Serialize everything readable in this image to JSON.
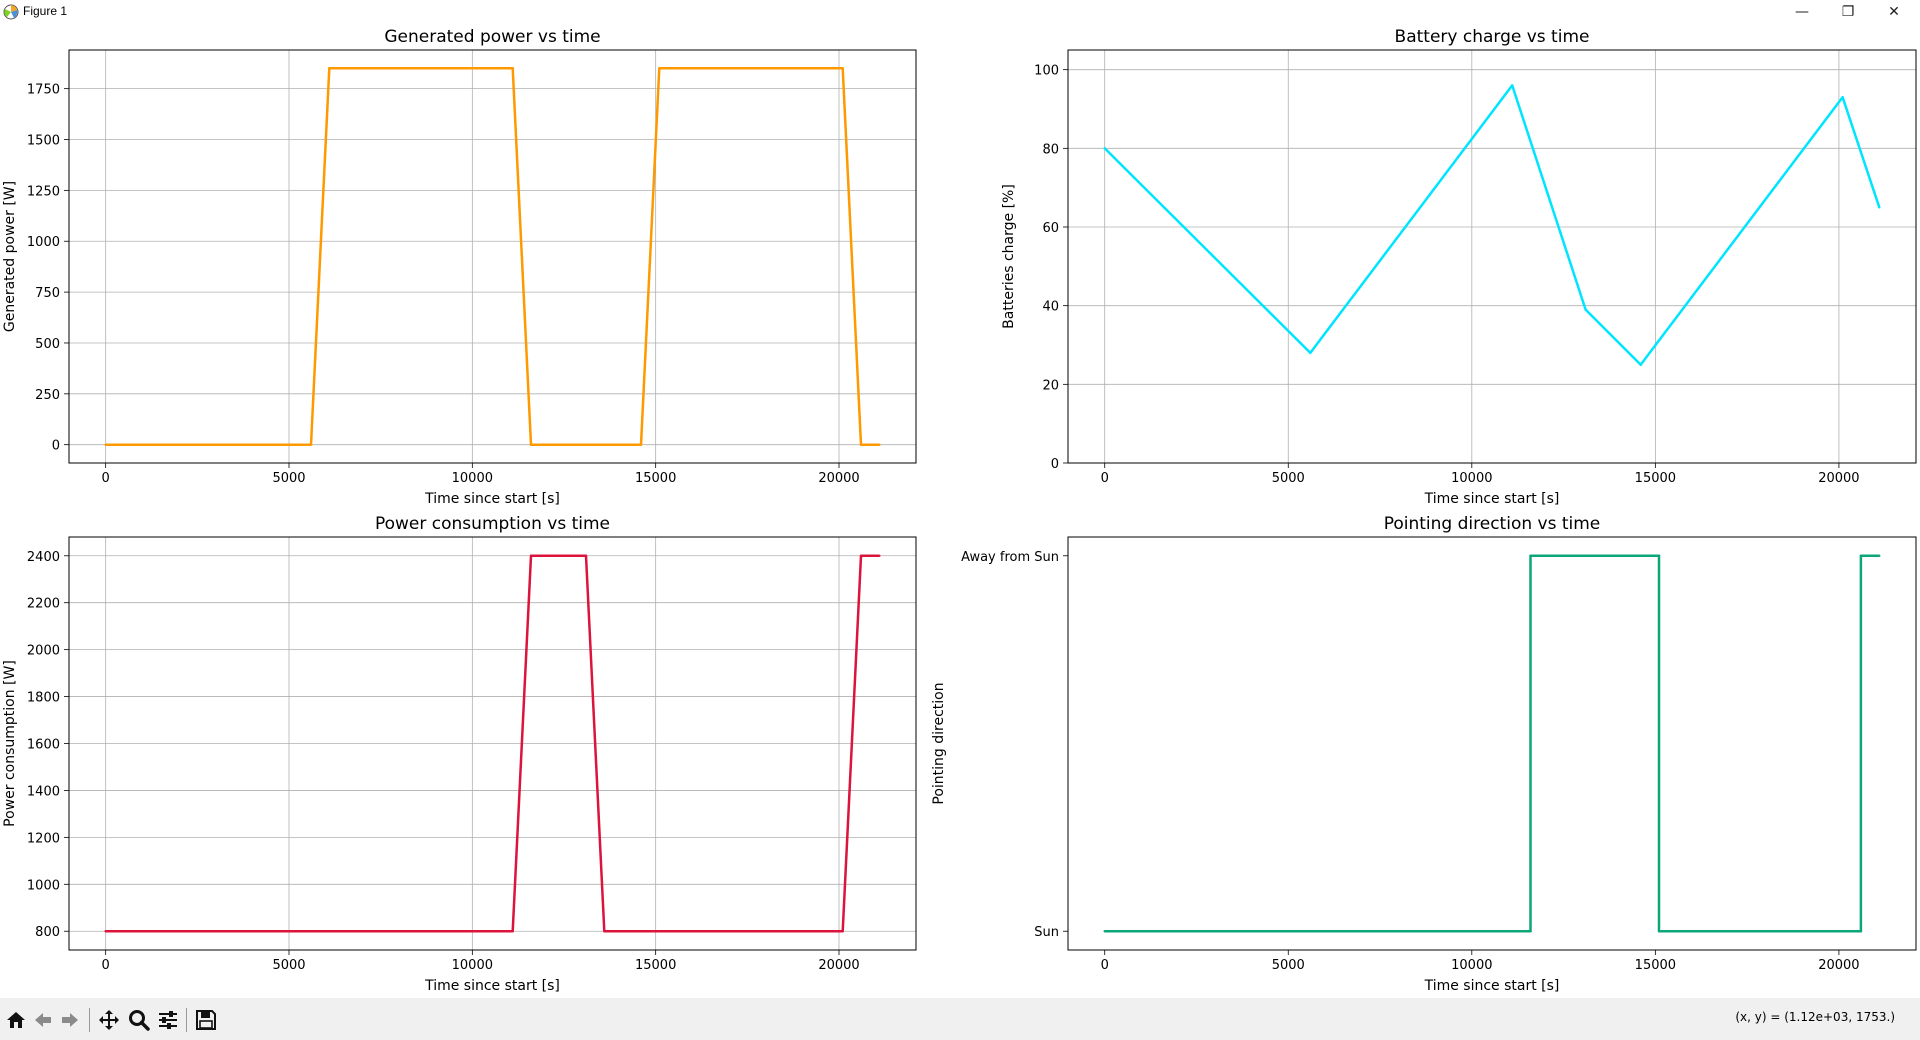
{
  "window": {
    "title": "Figure 1",
    "minimize_glyph": "—",
    "restore_glyph": "❐",
    "close_glyph": "✕"
  },
  "toolbar": {
    "buttons": [
      "home-icon",
      "back-arrow-icon",
      "forward-arrow-icon",
      "pan-icon",
      "zoom-icon",
      "subplots-config-icon",
      "save-icon"
    ],
    "coords_text": "(x, y) = (1.12e+03, 1753.)"
  },
  "colors": {
    "generated": "#ff9900",
    "battery": "#00e5ff",
    "consumption": "#dc143c",
    "pointing": "#0ca678"
  },
  "chart_data": [
    {
      "id": "generated",
      "type": "line",
      "title": "Generated power vs time",
      "xlabel": "Time since start [s]",
      "ylabel": "Generated power [W]",
      "xlim": [
        -1000,
        22100
      ],
      "ylim": [
        -90,
        1940
      ],
      "xticks": [
        0,
        5000,
        10000,
        15000,
        20000
      ],
      "yticks": [
        0,
        250,
        500,
        750,
        1000,
        1250,
        1500,
        1750
      ],
      "grid": true,
      "color": "#ff9900",
      "x": [
        0,
        5600,
        6100,
        11100,
        11600,
        14600,
        15100,
        20100,
        20600,
        21100
      ],
      "y": [
        0,
        0,
        1850,
        1850,
        0,
        0,
        1850,
        1850,
        0,
        0
      ]
    },
    {
      "id": "battery",
      "type": "line",
      "title": "Battery charge vs time",
      "xlabel": "Time since start [s]",
      "ylabel": "Batteries charge [%]",
      "xlim": [
        -1000,
        22100
      ],
      "ylim": [
        0,
        105
      ],
      "xticks": [
        0,
        5000,
        10000,
        15000,
        20000
      ],
      "yticks": [
        0,
        20,
        40,
        60,
        80,
        100
      ],
      "grid": true,
      "color": "#00e5ff",
      "x": [
        0,
        5600,
        11100,
        13100,
        14600,
        20100,
        21100
      ],
      "y": [
        80,
        28,
        96,
        39,
        25,
        93,
        65
      ]
    },
    {
      "id": "consumption",
      "type": "line",
      "title": "Power consumption vs time",
      "xlabel": "Time since start [s]",
      "ylabel": "Power consumption [W]",
      "xlim": [
        -1000,
        22100
      ],
      "ylim": [
        720,
        2480
      ],
      "xticks": [
        0,
        5000,
        10000,
        15000,
        20000
      ],
      "yticks": [
        800,
        1000,
        1200,
        1400,
        1600,
        1800,
        2000,
        2200,
        2400
      ],
      "grid": true,
      "color": "#dc143c",
      "x": [
        0,
        11100,
        11600,
        13100,
        13600,
        20100,
        20600,
        21100
      ],
      "y": [
        800,
        800,
        2400,
        2400,
        800,
        800,
        2400,
        2400
      ]
    },
    {
      "id": "pointing",
      "type": "line",
      "title": "Pointing direction vs time",
      "xlabel": "Time since start [s]",
      "ylabel": "Pointing direction",
      "xlim": [
        -1000,
        22100
      ],
      "ylim": [
        -0.05,
        1.05
      ],
      "xticks": [
        0,
        5000,
        10000,
        15000,
        20000
      ],
      "yticks": [
        0,
        1
      ],
      "ytick_labels": [
        "Sun",
        "Away from Sun"
      ],
      "grid": false,
      "color": "#0ca678",
      "x": [
        0,
        11600,
        11600,
        15100,
        15100,
        20600,
        20600,
        21100
      ],
      "y": [
        0,
        0,
        1,
        1,
        0,
        0,
        1,
        1
      ]
    }
  ]
}
